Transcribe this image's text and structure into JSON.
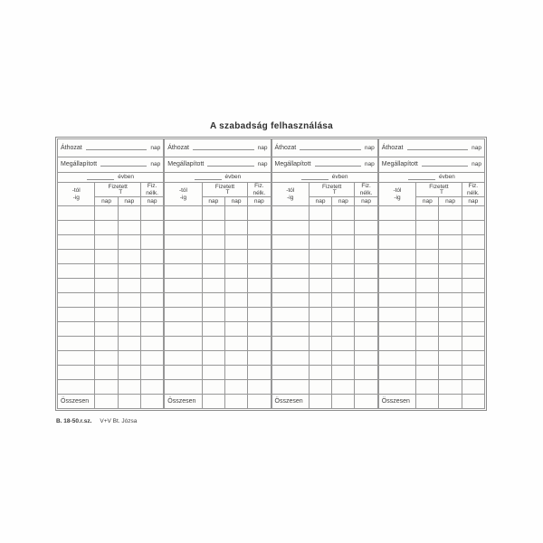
{
  "document": {
    "title": "A szabadság felhasználása",
    "footer": {
      "form_number": "B. 18-50.r.sz.",
      "publisher": "V+V Bt. Józsa"
    }
  },
  "form": {
    "labels": {
      "carried_over": "Áthozat",
      "established": "Megállapított",
      "days_unit": "nap",
      "in_year": "évben",
      "from": "-tól",
      "to": "-ig",
      "paid": "Fizetett",
      "paid_t": "T",
      "unpaid_line1": "Fiz.",
      "unpaid_line2": "nélk.",
      "nap": "nap",
      "total": "Összesen"
    },
    "grid": {
      "section_count": 4,
      "empty_data_rows": 13,
      "columns_per_section": 4
    },
    "colors": {
      "paper": "#fdfdfc",
      "line": "#8d8d8d",
      "ink": "#3d3d3d"
    }
  }
}
